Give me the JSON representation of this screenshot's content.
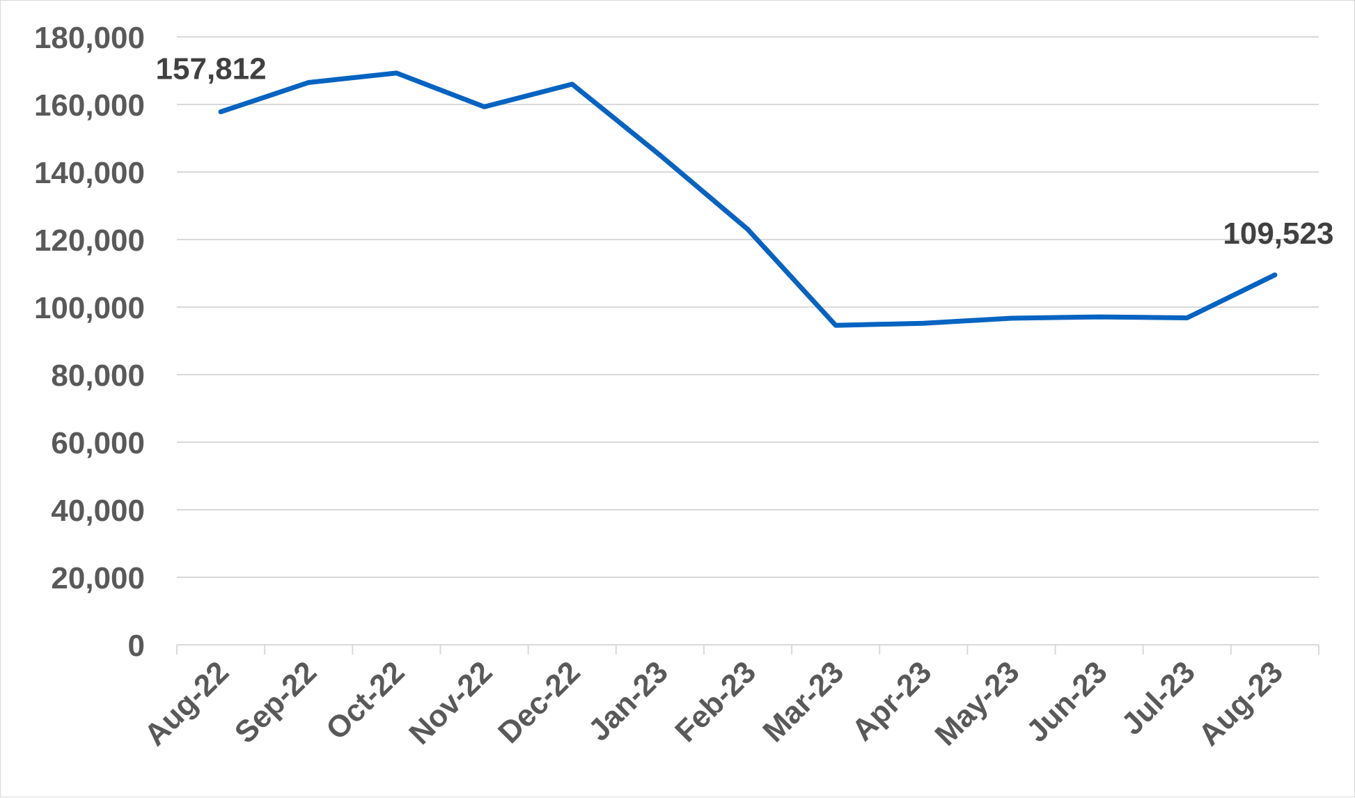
{
  "chart_data": {
    "type": "line",
    "title": "",
    "xlabel": "",
    "ylabel": "",
    "categories": [
      "Aug-22",
      "Sep-22",
      "Oct-22",
      "Nov-22",
      "Dec-22",
      "Jan-23",
      "Feb-23",
      "Mar-23",
      "Apr-23",
      "May-23",
      "Jun-23",
      "Jul-23",
      "Aug-23"
    ],
    "series": [
      {
        "values": [
          157812,
          166500,
          169300,
          159300,
          166000,
          145000,
          123000,
          94600,
          95200,
          96700,
          97100,
          96800,
          109523
        ],
        "color": "#0563C1"
      }
    ],
    "ylim": [
      0,
      180000
    ],
    "yticks": [
      "0",
      "20,000",
      "40,000",
      "60,000",
      "80,000",
      "100,000",
      "120,000",
      "140,000",
      "160,000",
      "180,000"
    ],
    "data_labels": [
      {
        "index": 0,
        "text": "157,812"
      },
      {
        "index": 12,
        "text": "109,523"
      }
    ],
    "grid": true,
    "legend": "none"
  }
}
